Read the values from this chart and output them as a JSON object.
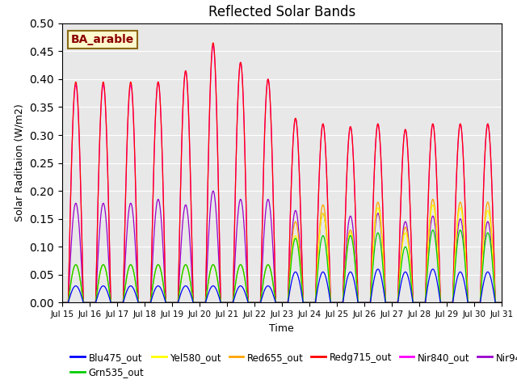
{
  "title": "Reflected Solar Bands",
  "xlabel": "Time",
  "ylabel": "Solar Raditaion (W/m2)",
  "annotation": "BA_arable",
  "annotation_color": "#8B0000",
  "annotation_bg": "#FFFACD",
  "annotation_border": "#8B6914",
  "ylim": [
    0.0,
    0.5
  ],
  "yticks": [
    0.0,
    0.05,
    0.1,
    0.15,
    0.2,
    0.25,
    0.3,
    0.35,
    0.4,
    0.45,
    0.5
  ],
  "start_day": 15,
  "end_day": 30,
  "background_color": "#E8E8E8",
  "grid_color": "#FFFFFF",
  "colors": {
    "Blu475_out": "#0000FF",
    "Grn535_out": "#00CC00",
    "Yel580_out": "#FFFF00",
    "Red655_out": "#FFA500",
    "Redg715_out": "#FF0000",
    "Nir840_out": "#FF00FF",
    "Nir945_out": "#9900CC"
  },
  "peak_heights": {
    "Nir840_out": [
      0.39,
      0.39,
      0.39,
      0.395,
      0.415,
      0.46,
      0.43,
      0.4,
      0.33,
      0.32,
      0.315,
      0.32,
      0.31,
      0.32,
      0.32,
      0.32
    ],
    "Redg715_out": [
      0.395,
      0.395,
      0.395,
      0.395,
      0.415,
      0.465,
      0.43,
      0.4,
      0.33,
      0.32,
      0.315,
      0.32,
      0.31,
      0.32,
      0.32,
      0.32
    ],
    "Nir945_out": [
      0.178,
      0.178,
      0.178,
      0.185,
      0.175,
      0.2,
      0.185,
      0.185,
      0.165,
      0.16,
      0.155,
      0.16,
      0.145,
      0.155,
      0.15,
      0.145
    ],
    "Red655_out": [
      0.068,
      0.068,
      0.068,
      0.068,
      0.068,
      0.068,
      0.068,
      0.068,
      0.145,
      0.175,
      0.13,
      0.18,
      0.135,
      0.185,
      0.18,
      0.18
    ],
    "Yel580_out": [
      0.068,
      0.068,
      0.068,
      0.068,
      0.068,
      0.068,
      0.068,
      0.068,
      0.12,
      0.16,
      0.125,
      0.17,
      0.125,
      0.175,
      0.17,
      0.165
    ],
    "Grn535_out": [
      0.068,
      0.068,
      0.068,
      0.068,
      0.068,
      0.068,
      0.068,
      0.068,
      0.115,
      0.12,
      0.12,
      0.125,
      0.1,
      0.13,
      0.13,
      0.125
    ],
    "Blu475_out": [
      0.03,
      0.03,
      0.03,
      0.03,
      0.03,
      0.03,
      0.03,
      0.03,
      0.055,
      0.055,
      0.055,
      0.06,
      0.055,
      0.06,
      0.055,
      0.055
    ]
  },
  "peak_widths": {
    "Nir840_out": 0.38,
    "Redg715_out": 0.1,
    "Nir945_out": 0.3,
    "Red655_out": 0.28,
    "Yel580_out": 0.26,
    "Grn535_out": 0.24,
    "Blu475_out": 0.22
  }
}
